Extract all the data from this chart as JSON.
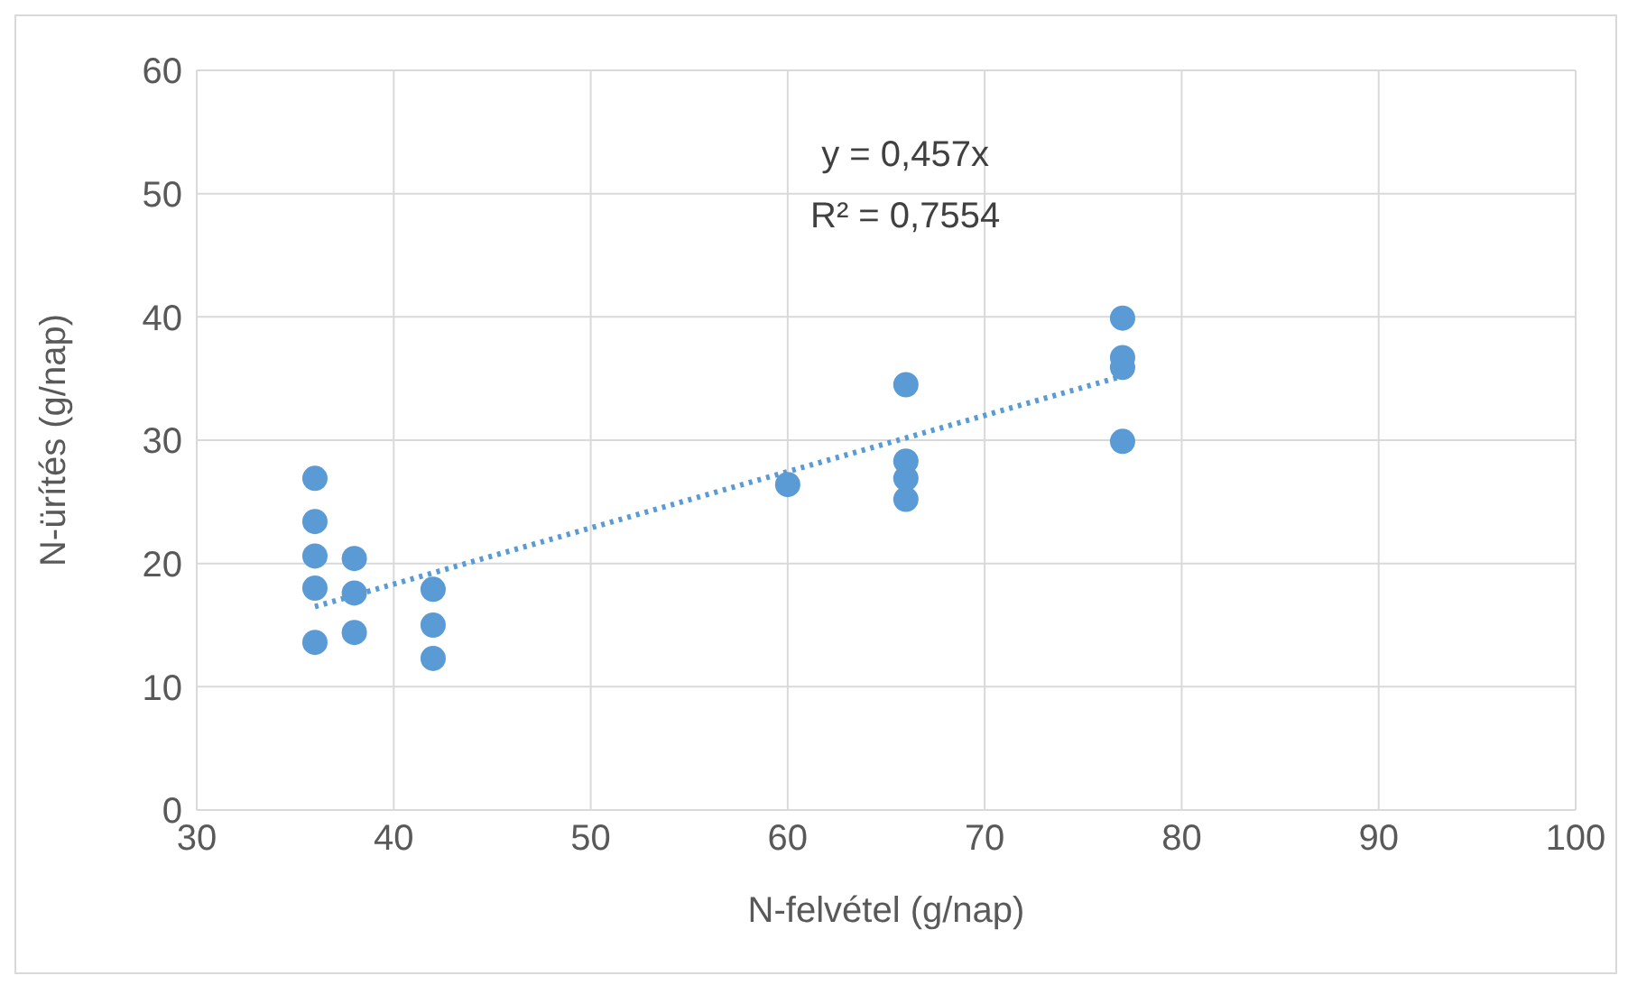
{
  "chart_data": {
    "type": "scatter",
    "xlabel": "N-felvétel (g/nap)",
    "ylabel": "N-ürítés (g/nap)",
    "xlim": [
      30,
      100
    ],
    "xticks": [
      30,
      40,
      50,
      60,
      70,
      80,
      90,
      100
    ],
    "ylim": [
      0,
      60
    ],
    "yticks": [
      0,
      10,
      20,
      30,
      40,
      50,
      60
    ],
    "grid": true,
    "annotations": [
      "y = 0,457x",
      "R² = 0,7554"
    ],
    "series": [
      {
        "color": "#5b9bd5",
        "marker": "circle",
        "x": [
          36,
          36,
          36,
          36,
          36,
          38,
          38,
          38,
          42,
          42,
          42,
          60,
          66,
          66,
          66,
          66,
          77,
          77,
          77,
          77
        ],
        "values": [
          26.9,
          23.4,
          20.6,
          18.0,
          13.6,
          20.4,
          17.6,
          14.4,
          17.9,
          15.0,
          12.3,
          26.4,
          34.5,
          28.3,
          26.9,
          25.2,
          39.9,
          36.7,
          35.9,
          29.9
        ]
      },
      {
        "type": "line",
        "color": "#5b9bd5",
        "line_style": "dotted",
        "marker": "none",
        "x": [
          36,
          77
        ],
        "values": [
          16.5,
          35.2
        ]
      }
    ]
  }
}
